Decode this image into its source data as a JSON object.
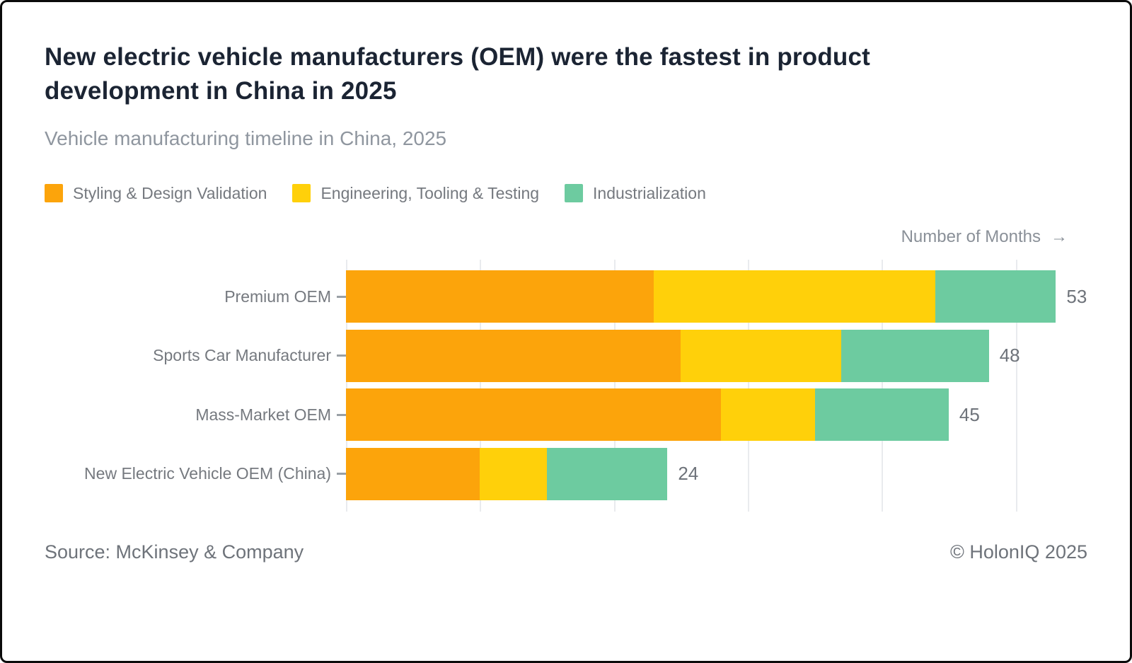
{
  "chart_data": {
    "type": "bar",
    "orientation": "horizontal",
    "stacked": true,
    "title": "New electric vehicle manufacturers (OEM) were the fastest in product development in China in 2025",
    "subtitle": "Vehicle manufacturing timeline in China, 2025",
    "xlabel": "Number of Months",
    "xlabel_arrow": "→",
    "categories": [
      "Premium OEM",
      "Sports Car Manufacturer",
      "Mass-Market OEM",
      "New Electric Vehicle OEM (China)"
    ],
    "series": [
      {
        "name": "Styling & Design Validation",
        "color": "#FCA40B",
        "values": [
          23,
          25,
          28,
          10
        ]
      },
      {
        "name": "Engineering, Tooling & Testing",
        "color": "#FFD00A",
        "values": [
          21,
          12,
          7,
          5
        ]
      },
      {
        "name": "Industrialization",
        "color": "#6DCBA0",
        "values": [
          9,
          11,
          10,
          9
        ]
      }
    ],
    "totals": [
      53,
      48,
      45,
      24
    ],
    "xlim": [
      0,
      51.5
    ],
    "grid_interval": 10,
    "grid": true,
    "legend_position": "top"
  },
  "footer": {
    "source": "Source: McKinsey & Company",
    "copyright": "© HolonIQ 2025"
  },
  "colors": {
    "title_text": "#1b2433",
    "muted_text": "#75797f",
    "gridline": "#e9ebee",
    "border": "#0b0b0b"
  }
}
